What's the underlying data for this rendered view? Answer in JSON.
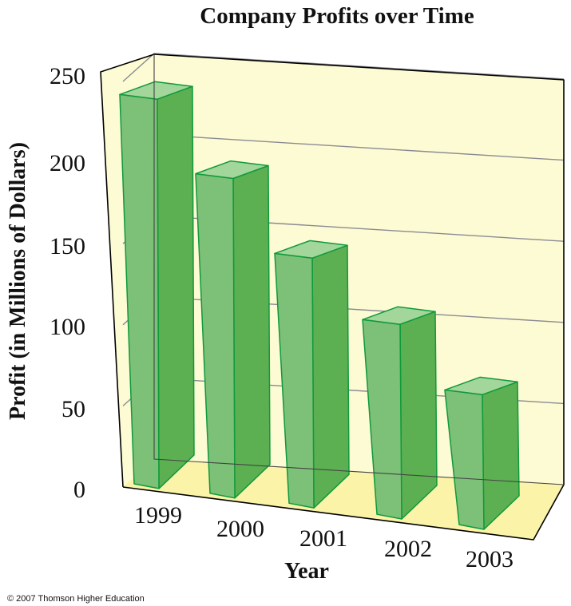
{
  "chart_data": {
    "type": "bar",
    "title": "Company Profits over Time",
    "xlabel": "Year",
    "ylabel": "Profit (in Millions of Dollars)",
    "categories": [
      "1999",
      "2000",
      "2001",
      "2002",
      "2003"
    ],
    "values": [
      240,
      197,
      154,
      120,
      83
    ],
    "yticks": [
      "0",
      "50",
      "100",
      "150",
      "200",
      "250"
    ],
    "ylim": [
      0,
      250
    ],
    "grid": true,
    "legend": "none",
    "style": "3d",
    "colors": {
      "bar_front": "#7dc077",
      "bar_side": "#5cb052",
      "bar_top": "#a2d69a",
      "bar_edge": "#0f9a3c",
      "back_wall": "#fdfbd3",
      "side_wall": "#fdfbd3",
      "floor": "#fbf4a8",
      "grid_line": "#8a8a94",
      "frame": "#000000"
    }
  },
  "footer": {
    "copyright": "© 2007 Thomson Higher Education"
  }
}
